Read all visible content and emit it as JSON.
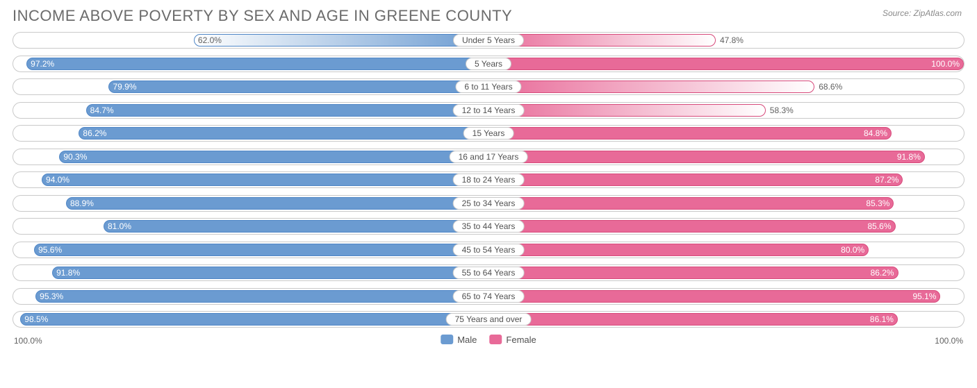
{
  "title": "INCOME ABOVE POVERTY BY SEX AND AGE IN GREENE COUNTY",
  "source": "Source: ZipAtlas.com",
  "axis_left": "100.0%",
  "axis_right": "100.0%",
  "legend": {
    "male": "Male",
    "female": "Female"
  },
  "colors": {
    "male_solid": "#6b9bd1",
    "male_border": "#4f86c6",
    "female_solid": "#e86a98",
    "female_border": "#d74a7b",
    "text_on_bar": "#ffffff",
    "text_off_bar": "#606060",
    "row_border": "#c9c9c9",
    "title_color": "#6b6b6b"
  },
  "gradient_threshold": 70,
  "rows": [
    {
      "category": "Under 5 Years",
      "male": 62.0,
      "female": 47.8
    },
    {
      "category": "5 Years",
      "male": 97.2,
      "female": 100.0
    },
    {
      "category": "6 to 11 Years",
      "male": 79.9,
      "female": 68.6
    },
    {
      "category": "12 to 14 Years",
      "male": 84.7,
      "female": 58.3
    },
    {
      "category": "15 Years",
      "male": 86.2,
      "female": 84.8
    },
    {
      "category": "16 and 17 Years",
      "male": 90.3,
      "female": 91.8
    },
    {
      "category": "18 to 24 Years",
      "male": 94.0,
      "female": 87.2
    },
    {
      "category": "25 to 34 Years",
      "male": 88.9,
      "female": 85.3
    },
    {
      "category": "35 to 44 Years",
      "male": 81.0,
      "female": 85.6
    },
    {
      "category": "45 to 54 Years",
      "male": 95.6,
      "female": 80.0
    },
    {
      "category": "55 to 64 Years",
      "male": 91.8,
      "female": 86.2
    },
    {
      "category": "65 to 74 Years",
      "male": 95.3,
      "female": 95.1
    },
    {
      "category": "75 Years and over",
      "male": 98.5,
      "female": 86.1
    }
  ]
}
